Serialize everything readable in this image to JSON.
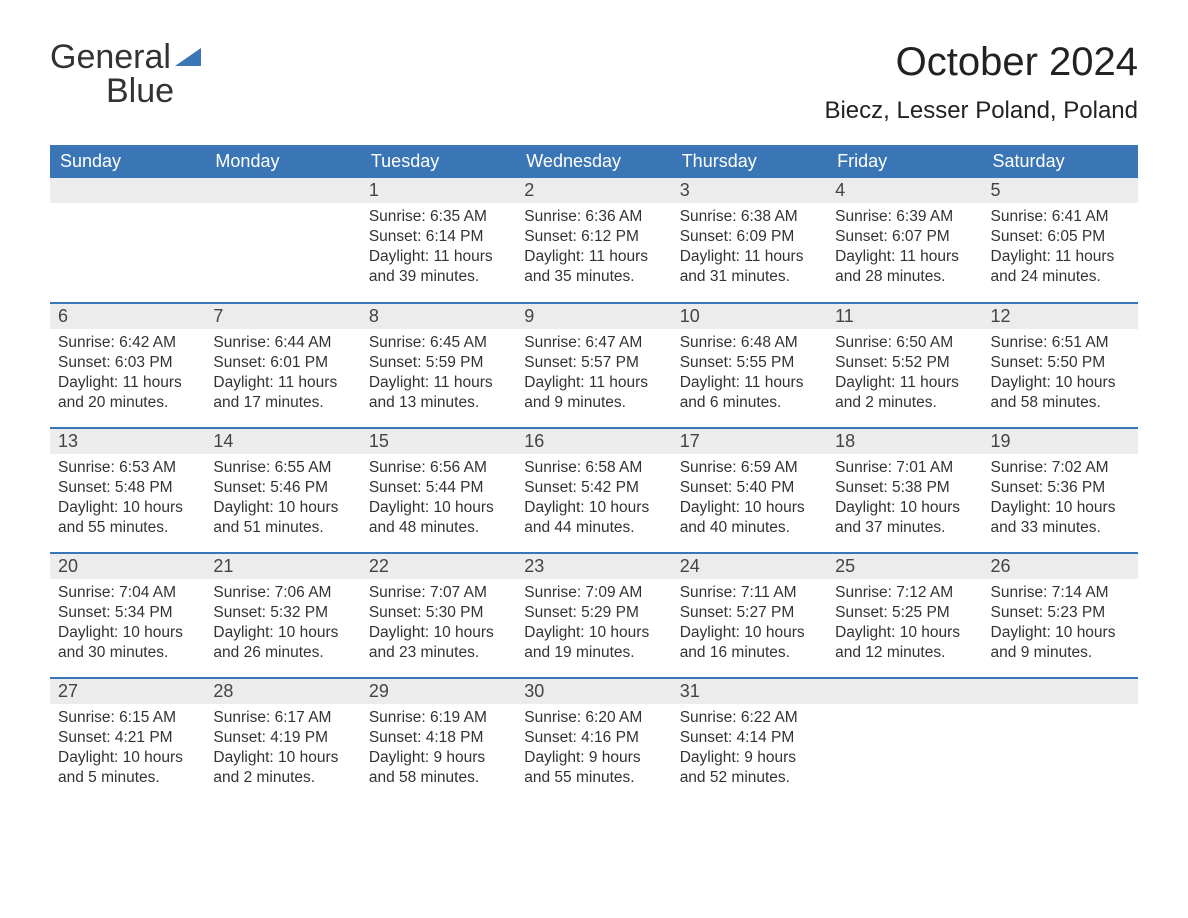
{
  "brand": {
    "part1": "General",
    "part2": "Blue"
  },
  "colors": {
    "header_bg": "#3a76b5",
    "header_fg": "#ffffff",
    "daynum_bg": "#ececec",
    "rule": "#3a76b5",
    "text": "#333333",
    "brand_blue": "#3a76b5"
  },
  "title": "October 2024",
  "location": "Biecz, Lesser Poland, Poland",
  "weekdays": [
    "Sunday",
    "Monday",
    "Tuesday",
    "Wednesday",
    "Thursday",
    "Friday",
    "Saturday"
  ],
  "weeks": [
    [
      null,
      null,
      {
        "n": "1",
        "sunrise": "Sunrise: 6:35 AM",
        "sunset": "Sunset: 6:14 PM",
        "day1": "Daylight: 11 hours",
        "day2": "and 39 minutes."
      },
      {
        "n": "2",
        "sunrise": "Sunrise: 6:36 AM",
        "sunset": "Sunset: 6:12 PM",
        "day1": "Daylight: 11 hours",
        "day2": "and 35 minutes."
      },
      {
        "n": "3",
        "sunrise": "Sunrise: 6:38 AM",
        "sunset": "Sunset: 6:09 PM",
        "day1": "Daylight: 11 hours",
        "day2": "and 31 minutes."
      },
      {
        "n": "4",
        "sunrise": "Sunrise: 6:39 AM",
        "sunset": "Sunset: 6:07 PM",
        "day1": "Daylight: 11 hours",
        "day2": "and 28 minutes."
      },
      {
        "n": "5",
        "sunrise": "Sunrise: 6:41 AM",
        "sunset": "Sunset: 6:05 PM",
        "day1": "Daylight: 11 hours",
        "day2": "and 24 minutes."
      }
    ],
    [
      {
        "n": "6",
        "sunrise": "Sunrise: 6:42 AM",
        "sunset": "Sunset: 6:03 PM",
        "day1": "Daylight: 11 hours",
        "day2": "and 20 minutes."
      },
      {
        "n": "7",
        "sunrise": "Sunrise: 6:44 AM",
        "sunset": "Sunset: 6:01 PM",
        "day1": "Daylight: 11 hours",
        "day2": "and 17 minutes."
      },
      {
        "n": "8",
        "sunrise": "Sunrise: 6:45 AM",
        "sunset": "Sunset: 5:59 PM",
        "day1": "Daylight: 11 hours",
        "day2": "and 13 minutes."
      },
      {
        "n": "9",
        "sunrise": "Sunrise: 6:47 AM",
        "sunset": "Sunset: 5:57 PM",
        "day1": "Daylight: 11 hours",
        "day2": "and 9 minutes."
      },
      {
        "n": "10",
        "sunrise": "Sunrise: 6:48 AM",
        "sunset": "Sunset: 5:55 PM",
        "day1": "Daylight: 11 hours",
        "day2": "and 6 minutes."
      },
      {
        "n": "11",
        "sunrise": "Sunrise: 6:50 AM",
        "sunset": "Sunset: 5:52 PM",
        "day1": "Daylight: 11 hours",
        "day2": "and 2 minutes."
      },
      {
        "n": "12",
        "sunrise": "Sunrise: 6:51 AM",
        "sunset": "Sunset: 5:50 PM",
        "day1": "Daylight: 10 hours",
        "day2": "and 58 minutes."
      }
    ],
    [
      {
        "n": "13",
        "sunrise": "Sunrise: 6:53 AM",
        "sunset": "Sunset: 5:48 PM",
        "day1": "Daylight: 10 hours",
        "day2": "and 55 minutes."
      },
      {
        "n": "14",
        "sunrise": "Sunrise: 6:55 AM",
        "sunset": "Sunset: 5:46 PM",
        "day1": "Daylight: 10 hours",
        "day2": "and 51 minutes."
      },
      {
        "n": "15",
        "sunrise": "Sunrise: 6:56 AM",
        "sunset": "Sunset: 5:44 PM",
        "day1": "Daylight: 10 hours",
        "day2": "and 48 minutes."
      },
      {
        "n": "16",
        "sunrise": "Sunrise: 6:58 AM",
        "sunset": "Sunset: 5:42 PM",
        "day1": "Daylight: 10 hours",
        "day2": "and 44 minutes."
      },
      {
        "n": "17",
        "sunrise": "Sunrise: 6:59 AM",
        "sunset": "Sunset: 5:40 PM",
        "day1": "Daylight: 10 hours",
        "day2": "and 40 minutes."
      },
      {
        "n": "18",
        "sunrise": "Sunrise: 7:01 AM",
        "sunset": "Sunset: 5:38 PM",
        "day1": "Daylight: 10 hours",
        "day2": "and 37 minutes."
      },
      {
        "n": "19",
        "sunrise": "Sunrise: 7:02 AM",
        "sunset": "Sunset: 5:36 PM",
        "day1": "Daylight: 10 hours",
        "day2": "and 33 minutes."
      }
    ],
    [
      {
        "n": "20",
        "sunrise": "Sunrise: 7:04 AM",
        "sunset": "Sunset: 5:34 PM",
        "day1": "Daylight: 10 hours",
        "day2": "and 30 minutes."
      },
      {
        "n": "21",
        "sunrise": "Sunrise: 7:06 AM",
        "sunset": "Sunset: 5:32 PM",
        "day1": "Daylight: 10 hours",
        "day2": "and 26 minutes."
      },
      {
        "n": "22",
        "sunrise": "Sunrise: 7:07 AM",
        "sunset": "Sunset: 5:30 PM",
        "day1": "Daylight: 10 hours",
        "day2": "and 23 minutes."
      },
      {
        "n": "23",
        "sunrise": "Sunrise: 7:09 AM",
        "sunset": "Sunset: 5:29 PM",
        "day1": "Daylight: 10 hours",
        "day2": "and 19 minutes."
      },
      {
        "n": "24",
        "sunrise": "Sunrise: 7:11 AM",
        "sunset": "Sunset: 5:27 PM",
        "day1": "Daylight: 10 hours",
        "day2": "and 16 minutes."
      },
      {
        "n": "25",
        "sunrise": "Sunrise: 7:12 AM",
        "sunset": "Sunset: 5:25 PM",
        "day1": "Daylight: 10 hours",
        "day2": "and 12 minutes."
      },
      {
        "n": "26",
        "sunrise": "Sunrise: 7:14 AM",
        "sunset": "Sunset: 5:23 PM",
        "day1": "Daylight: 10 hours",
        "day2": "and 9 minutes."
      }
    ],
    [
      {
        "n": "27",
        "sunrise": "Sunrise: 6:15 AM",
        "sunset": "Sunset: 4:21 PM",
        "day1": "Daylight: 10 hours",
        "day2": "and 5 minutes."
      },
      {
        "n": "28",
        "sunrise": "Sunrise: 6:17 AM",
        "sunset": "Sunset: 4:19 PM",
        "day1": "Daylight: 10 hours",
        "day2": "and 2 minutes."
      },
      {
        "n": "29",
        "sunrise": "Sunrise: 6:19 AM",
        "sunset": "Sunset: 4:18 PM",
        "day1": "Daylight: 9 hours",
        "day2": "and 58 minutes."
      },
      {
        "n": "30",
        "sunrise": "Sunrise: 6:20 AM",
        "sunset": "Sunset: 4:16 PM",
        "day1": "Daylight: 9 hours",
        "day2": "and 55 minutes."
      },
      {
        "n": "31",
        "sunrise": "Sunrise: 6:22 AM",
        "sunset": "Sunset: 4:14 PM",
        "day1": "Daylight: 9 hours",
        "day2": "and 52 minutes."
      },
      null,
      null
    ]
  ]
}
